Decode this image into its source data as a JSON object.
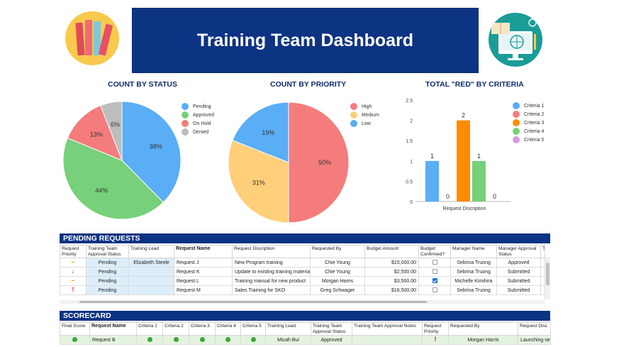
{
  "header": {
    "title": "Training Team Dashboard",
    "left_icon": "books-icon",
    "right_icon": "computer-learning-icon"
  },
  "charts": {
    "status_title": "COUNT BY STATUS",
    "priority_title": "COUNT BY PRIORITY",
    "criteria_title": "TOTAL \"RED\" BY CRITERIA"
  },
  "chart_data": [
    {
      "type": "pie",
      "title": "COUNT BY STATUS",
      "labels": [
        "Pending",
        "Approved",
        "On Hold",
        "Denied"
      ],
      "values": [
        38,
        44,
        13,
        6
      ],
      "value_labels": [
        "38%",
        "44%",
        "13%",
        "6%"
      ],
      "colors": [
        "#5aaef5",
        "#77d07a",
        "#f47c7c",
        "#bdbdbd"
      ],
      "legend": "right"
    },
    {
      "type": "pie",
      "title": "COUNT BY PRIORITY",
      "labels": [
        "High",
        "Medium",
        "Low"
      ],
      "values": [
        50,
        31,
        19
      ],
      "value_labels": [
        "50%",
        "31%",
        "19%"
      ],
      "colors": [
        "#f47c7c",
        "#ffcf7a",
        "#5aaef5"
      ],
      "legend": "right"
    },
    {
      "type": "bar",
      "title": "TOTAL \"RED\" BY CRITERIA",
      "xlabel": "Request Discription",
      "ylabel": "",
      "ylim": [
        0,
        2.5
      ],
      "yticks": [
        "0",
        "0.5",
        "1",
        "1.5",
        "2",
        "2.5"
      ],
      "series": [
        {
          "name": "Criteria 1",
          "value": 1,
          "label": "1",
          "color": "#5aaef5"
        },
        {
          "name": "Criteria 2",
          "value": 0,
          "label": "0",
          "color": "#f47c7c"
        },
        {
          "name": "Criteria 3",
          "value": 2,
          "label": "2",
          "color": "#ff8c00"
        },
        {
          "name": "Criteria 4",
          "value": 1,
          "label": "1",
          "color": "#77d07a"
        },
        {
          "name": "Criteria 5",
          "value": 0,
          "label": "0",
          "color": "#d59ae0"
        }
      ],
      "legend": "right"
    }
  ],
  "pending": {
    "section_title": "PENDING REQUESTS",
    "headers": [
      "Request Priority",
      "Training Team Approval Status",
      "Training Lead",
      "Request Name",
      "Request Discription",
      "Requested By",
      "Budget Amount",
      "Budget Confirmed?",
      "Manager Name",
      "Manager Approval Status",
      "Tra"
    ],
    "rows": [
      {
        "priority": "–",
        "priority_color": "#f08c00",
        "approval": "Pending",
        "lead": "Elizabeth Steele",
        "name": "Request J",
        "desc": "New Program training",
        "by": "Chie Young",
        "budget": "$15,000.00",
        "confirmed": false,
        "manager": "Sebrina Truong",
        "mgr_status": "Approved"
      },
      {
        "priority": "↓",
        "priority_color": "#1c6fd3",
        "approval": "Pending",
        "lead": "",
        "name": "Request K",
        "desc": "Update to existing training materials",
        "by": "Chie Young",
        "budget": "$2,500.00",
        "confirmed": false,
        "manager": "Sebrina Truong",
        "mgr_status": "Submitted"
      },
      {
        "priority": "–",
        "priority_color": "#f08c00",
        "approval": "Pending",
        "lead": "",
        "name": "Request L",
        "desc": "Training manual for new product",
        "by": "Morgan Harris",
        "budget": "$3,500.00",
        "confirmed": true,
        "manager": "Michelle Kimihira",
        "mgr_status": "Submitted"
      },
      {
        "priority": "!",
        "priority_color": "#d91e1e",
        "approval": "Pending",
        "lead": "",
        "name": "Request M",
        "desc": "Sales Training for SKO",
        "by": "Greg Schwager",
        "budget": "$16,500.00",
        "confirmed": false,
        "manager": "Sebrina Truong",
        "mgr_status": "Submitted"
      }
    ]
  },
  "scorecard": {
    "section_title": "SCORECARD",
    "headers": [
      "Final Score",
      "Request Name",
      "Criteria 1",
      "Criteria 2",
      "Criteria 3",
      "Criteria 4",
      "Criteria 5",
      "Training Lead",
      "Training Team Approval Status",
      "Training Team Approval Notes",
      "Request Priority",
      "Requested By",
      "Request Disc"
    ],
    "rows": [
      {
        "name": "Request B",
        "lead": "Micah Bui",
        "approval": "Approved",
        "notes": "",
        "priority": "!",
        "by": "Morgan Harris",
        "desc": "Launching set up trai"
      }
    ]
  }
}
